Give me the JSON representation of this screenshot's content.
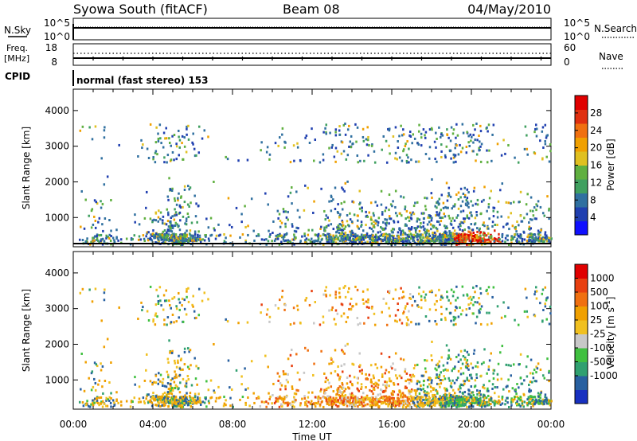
{
  "header": {
    "station": "Syowa South (fitACF)",
    "beam": "Beam 08",
    "date": "04/May/2010"
  },
  "top_panels": {
    "nsky_label": "N.Sky",
    "nsky_ticks": [
      "10^5",
      "10^0"
    ],
    "nsearch_label": "N.Search",
    "nsearch_ticks": [
      "10^5",
      "10^0"
    ],
    "freq_label_1": "Freq.",
    "freq_label_2": "[MHz]",
    "freq_ticks": [
      "18",
      "8"
    ],
    "nave_label": "Nave",
    "nave_ticks": [
      "60",
      "0"
    ],
    "cpid_label": "CPID",
    "cpid_text": "normal (fast stereo) 153"
  },
  "chart_data": [
    {
      "type": "heatmap",
      "name": "power",
      "ylabel": "Slant Range [km]",
      "yticks": [
        "4000",
        "3000",
        "2000",
        "1000"
      ],
      "ytick_values": [
        4000,
        3000,
        2000,
        1000
      ],
      "ylim": [
        180,
        4600
      ],
      "xlim": [
        0,
        24
      ],
      "colorbar": {
        "label": "Power [dB]",
        "ticks": [
          "28",
          "24",
          "20",
          "16",
          "12",
          "8",
          "4"
        ],
        "tick_values": [
          28,
          24,
          20,
          16,
          12,
          8,
          4
        ],
        "range": [
          0,
          32
        ],
        "colors": [
          "#1010ff",
          "#2040b0",
          "#3070a0",
          "#40a060",
          "#60b040",
          "#e0c020",
          "#f0a000",
          "#f07010",
          "#e03010",
          "#e00000"
        ]
      }
    },
    {
      "type": "heatmap",
      "name": "velocity",
      "ylabel": "Slant Range [km]",
      "yticks": [
        "4000",
        "3000",
        "2000",
        "1000"
      ],
      "ytick_values": [
        4000,
        3000,
        2000,
        1000
      ],
      "ylim": [
        180,
        4600
      ],
      "xlim": [
        0,
        24
      ],
      "colorbar": {
        "label": "Velocity [m s",
        "label_sup": "-1",
        "label_end": "]",
        "ticks": [
          "1000",
          "500",
          "100",
          "25",
          "-25",
          "-100",
          "-500",
          "-1000"
        ],
        "colors": [
          "#1830c0",
          "#2860a0",
          "#30a070",
          "#40c040",
          "#c8c8c8",
          "#f0c020",
          "#f0a000",
          "#f07010",
          "#e84010",
          "#e00000"
        ]
      }
    }
  ],
  "x_axis": {
    "ticks": [
      "00:00",
      "04:00",
      "08:00",
      "12:00",
      "16:00",
      "20:00",
      "00:00"
    ],
    "tick_hours": [
      0,
      4,
      8,
      12,
      16,
      20,
      24
    ],
    "label": "Time UT"
  }
}
